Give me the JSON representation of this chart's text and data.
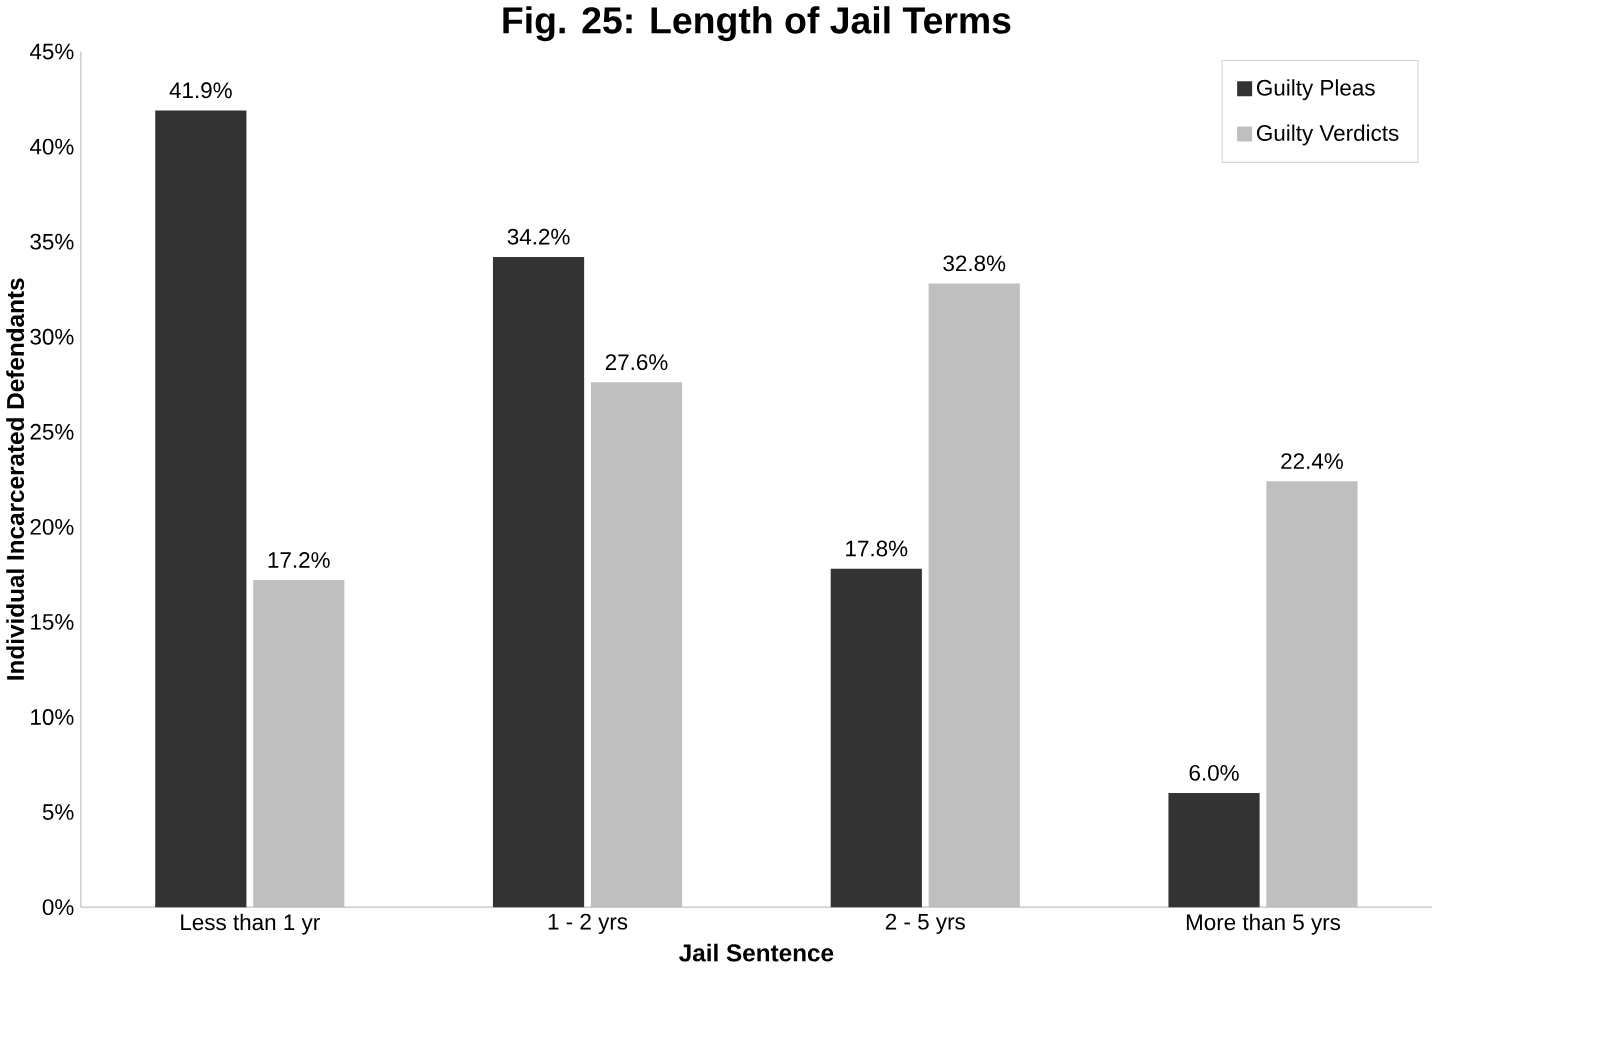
{
  "chart_data": {
    "type": "bar",
    "title": "Fig. 25: Length of Jail Terms",
    "xlabel": "Jail Sentence",
    "ylabel": "Individual Incarcerated Defendants",
    "categories": [
      "Less than 1 yr",
      "1 - 2 yrs",
      "2 - 5 yrs",
      "More than 5 yrs"
    ],
    "series": [
      {
        "name": "Guilty Pleas",
        "color": "#333333",
        "values": [
          41.9,
          34.2,
          17.8,
          6.0
        ],
        "value_labels": [
          "41.9%",
          "34.2%",
          "17.8%",
          "6.0%"
        ]
      },
      {
        "name": "Guilty Verdicts",
        "color": "#bfbfbf",
        "values": [
          17.2,
          27.6,
          32.8,
          22.4
        ],
        "value_labels": [
          "17.2%",
          "27.6%",
          "32.8%",
          "22.4%"
        ]
      }
    ],
    "ylim": [
      0,
      45
    ],
    "yticks": [
      {
        "value": 0,
        "label": "0%"
      },
      {
        "value": 5,
        "label": "5%"
      },
      {
        "value": 10,
        "label": "10%"
      },
      {
        "value": 15,
        "label": "15%"
      },
      {
        "value": 20,
        "label": "20%"
      },
      {
        "value": 25,
        "label": "25%"
      },
      {
        "value": 30,
        "label": "30%"
      },
      {
        "value": 35,
        "label": "35%"
      },
      {
        "value": 40,
        "label": "40%"
      },
      {
        "value": 45,
        "label": "45%"
      }
    ],
    "grid": false,
    "legend": "top right"
  }
}
